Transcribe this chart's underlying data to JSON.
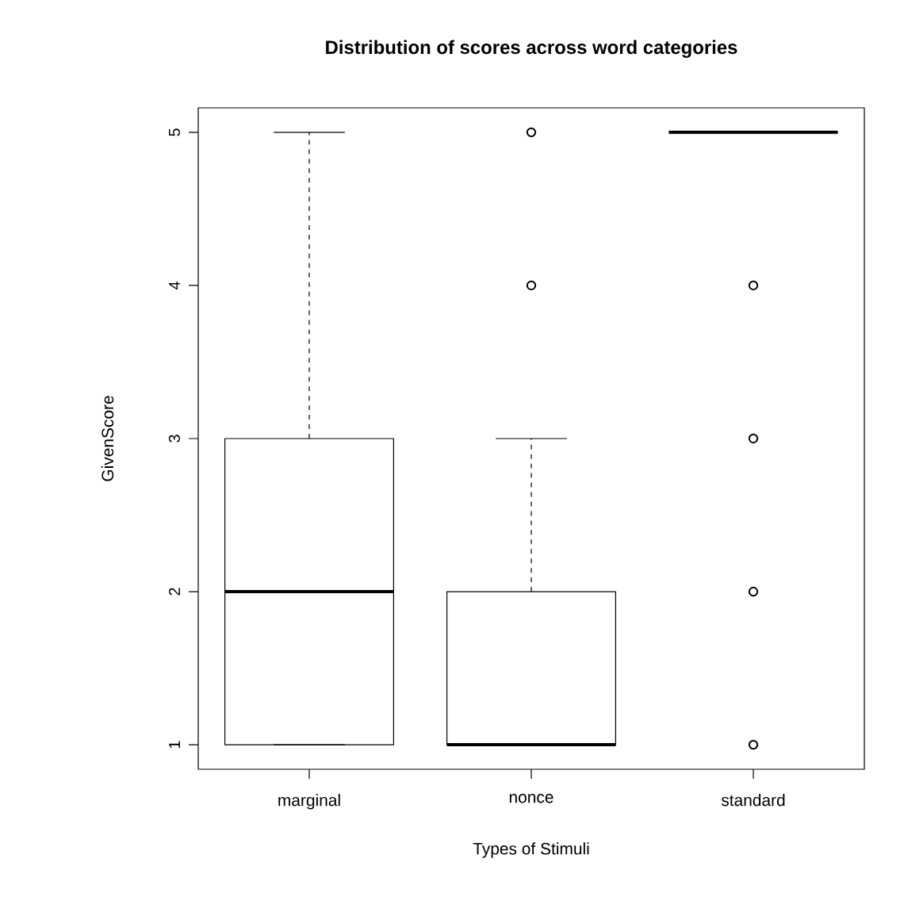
{
  "chart_data": {
    "type": "box",
    "title": "Distribution of scores across word categories",
    "xlabel": "Types of Stimuli",
    "ylabel": "GivenScore",
    "categories": [
      "marginal",
      "nonce",
      "standard"
    ],
    "boxes": [
      {
        "low": 1,
        "q1": 1,
        "median": 2,
        "q3": 3,
        "high": 5
      },
      {
        "low": 1,
        "q1": 1,
        "median": 1,
        "q3": 2,
        "high": 3,
        "outliers": [
          4,
          5
        ]
      },
      {
        "low": 5,
        "q1": 5,
        "median": 5,
        "q3": 5,
        "high": 5,
        "outliers": [
          1,
          2,
          3,
          4
        ]
      }
    ],
    "ylim": [
      0.84,
      5.16
    ],
    "yticks": [
      1,
      2,
      3,
      4,
      5
    ]
  }
}
